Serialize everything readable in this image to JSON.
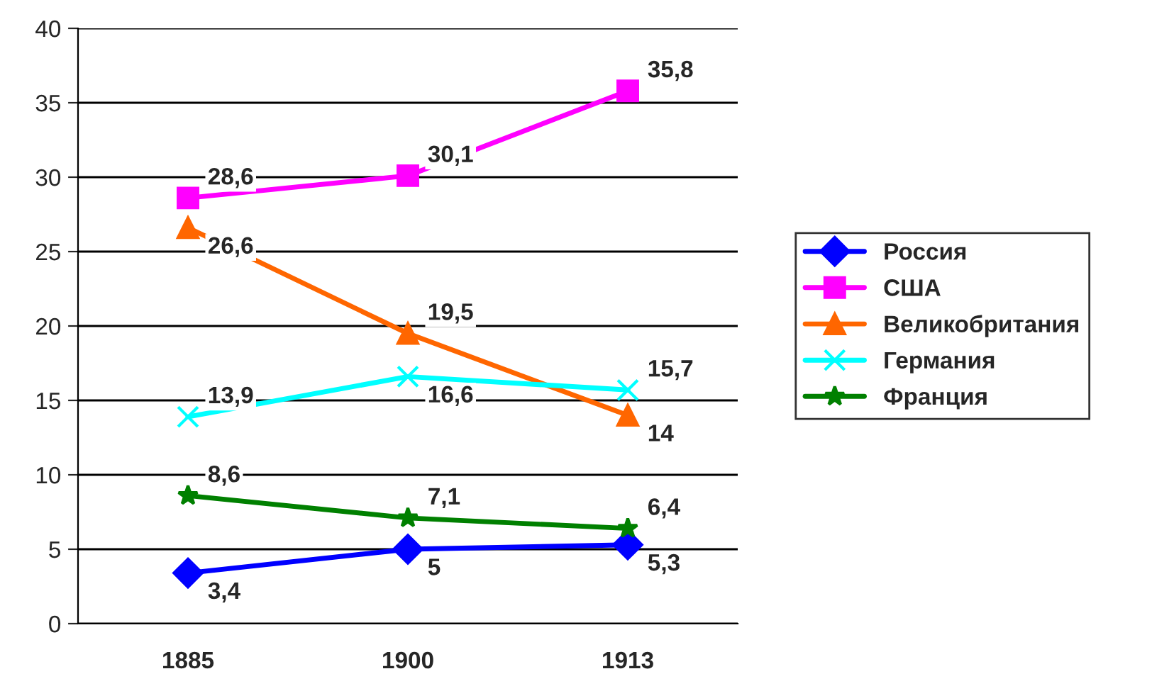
{
  "chart_data": {
    "type": "line",
    "categories": [
      "1885",
      "1900",
      "1913"
    ],
    "series": [
      {
        "name": "Россия",
        "color": "#0000ff",
        "marker": "diamond",
        "values": [
          3.4,
          5,
          5.3
        ],
        "value_labels": [
          "3,4",
          "5",
          "5,3"
        ]
      },
      {
        "name": "США",
        "color": "#ff00ff",
        "marker": "square",
        "values": [
          28.6,
          30.1,
          35.8
        ],
        "value_labels": [
          "28,6",
          "30,1",
          "35,8"
        ]
      },
      {
        "name": "Великобритания",
        "color": "#ff6600",
        "marker": "triangle",
        "values": [
          26.6,
          19.5,
          14
        ],
        "value_labels": [
          "26,6",
          "19,5",
          "14"
        ]
      },
      {
        "name": "Германия",
        "color": "#00ffff",
        "marker": "cross",
        "values": [
          13.9,
          16.6,
          15.7
        ],
        "value_labels": [
          "13,9",
          "16,6",
          "15,7"
        ]
      },
      {
        "name": "Франция",
        "color": "#008000",
        "marker": "star",
        "values": [
          8.6,
          7.1,
          6.4
        ],
        "value_labels": [
          "8,6",
          "7,1",
          "6,4"
        ]
      }
    ],
    "ylim": [
      0,
      40
    ],
    "yticks": [
      0,
      5,
      10,
      15,
      20,
      25,
      30,
      35,
      40
    ],
    "grid": "y",
    "legend": "right"
  }
}
